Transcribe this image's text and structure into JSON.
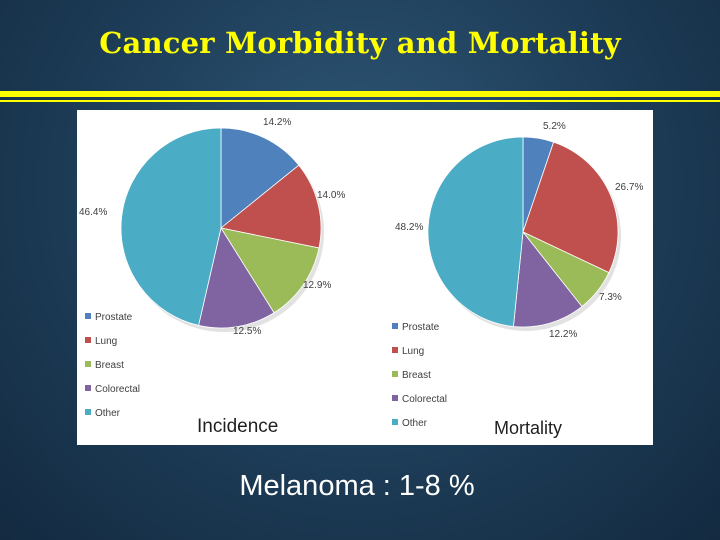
{
  "slide": {
    "title": "Cancer Morbidity and Mortality",
    "footer": "Melanoma : 1-8 %"
  },
  "chart_data": [
    {
      "type": "pie",
      "title": "Incidence",
      "categories": [
        "Prostate",
        "Lung",
        "Breast",
        "Colorectal",
        "Other"
      ],
      "values": [
        14.2,
        14.0,
        12.9,
        12.5,
        46.4
      ],
      "labels": [
        "14.2%",
        "14.0%",
        "12.9%",
        "12.5%",
        "46.4%"
      ],
      "colors": [
        "#4f81bd",
        "#c0504d",
        "#9bbb59",
        "#8064a2",
        "#4bacc6"
      ],
      "legend_position": "bottom-left"
    },
    {
      "type": "pie",
      "title": "Mortality",
      "categories": [
        "Prostate",
        "Lung",
        "Breast",
        "Colorectal",
        "Other"
      ],
      "values": [
        5.2,
        26.7,
        7.3,
        12.2,
        48.2
      ],
      "labels": [
        "5.2%",
        "26.7%",
        "7.3%",
        "12.2%",
        "48.2%"
      ],
      "colors": [
        "#4f81bd",
        "#c0504d",
        "#9bbb59",
        "#8064a2",
        "#4bacc6"
      ],
      "legend_position": "bottom-left"
    }
  ]
}
